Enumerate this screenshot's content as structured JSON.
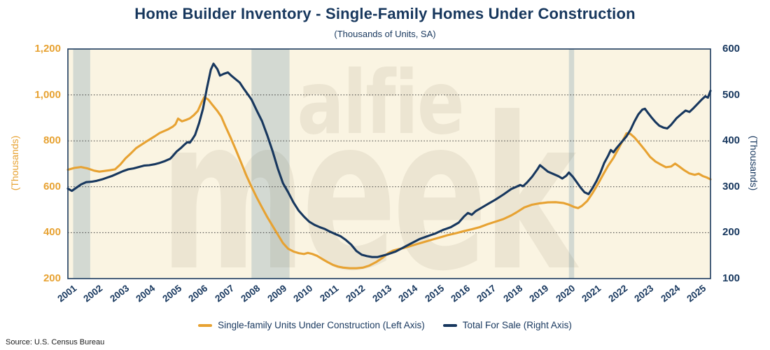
{
  "title": "Home Builder Inventory - Single-Family Homes Under Construction",
  "subtitle": "(Thousands of Units, SA)",
  "source": "Source: U.S. Census Bureau",
  "watermark_lines": [
    "alfie",
    "meek"
  ],
  "chart_data": {
    "type": "line",
    "x_range": [
      2001,
      2025.5
    ],
    "x_tick_years": [
      2001,
      2002,
      2003,
      2004,
      2005,
      2006,
      2007,
      2008,
      2009,
      2010,
      2011,
      2012,
      2013,
      2014,
      2015,
      2016,
      2017,
      2018,
      2019,
      2020,
      2021,
      2022,
      2023,
      2024,
      2025
    ],
    "left_axis": {
      "title": "(Thousands)",
      "min": 200,
      "max": 1200,
      "ticks": [
        200,
        400,
        600,
        800,
        1000,
        1200
      ],
      "color": "#E7A232"
    },
    "right_axis": {
      "title": "(Thousands)",
      "min": 100,
      "max": 600,
      "ticks": [
        100,
        200,
        300,
        400,
        500,
        600
      ],
      "color": "#17375E"
    },
    "gridline_left_values": [
      400,
      600,
      800,
      1000
    ],
    "grid": "dotted-horizontal",
    "plot_background": "#FAF4E2",
    "band_color": "#D3D9D2",
    "gridline_color": "#3b3b3b",
    "watermark_color": "rgba(80,70,25,0.08)",
    "recession_bands_years": [
      [
        2001.2,
        2001.85
      ],
      [
        2008.0,
        2009.45
      ],
      [
        2020.1,
        2020.3
      ]
    ],
    "legend_position": "bottom-center",
    "series": [
      {
        "name": "Single-family Units Under Construction (Left Axis)",
        "axis": "left",
        "color": "#E7A232",
        "points": [
          [
            2001.0,
            674
          ],
          [
            2001.25,
            682
          ],
          [
            2001.5,
            686
          ],
          [
            2001.75,
            680
          ],
          [
            2002.0,
            670
          ],
          [
            2002.2,
            666
          ],
          [
            2002.4,
            669
          ],
          [
            2002.6,
            672
          ],
          [
            2002.8,
            676
          ],
          [
            2003.0,
            697
          ],
          [
            2003.2,
            724
          ],
          [
            2003.4,
            745
          ],
          [
            2003.6,
            768
          ],
          [
            2003.8,
            783
          ],
          [
            2004.0,
            798
          ],
          [
            2004.3,
            819
          ],
          [
            2004.5,
            834
          ],
          [
            2004.8,
            849
          ],
          [
            2005.0,
            862
          ],
          [
            2005.1,
            872
          ],
          [
            2005.2,
            897
          ],
          [
            2005.35,
            885
          ],
          [
            2005.5,
            891
          ],
          [
            2005.65,
            898
          ],
          [
            2005.8,
            912
          ],
          [
            2005.95,
            930
          ],
          [
            2006.1,
            968
          ],
          [
            2006.2,
            990
          ],
          [
            2006.35,
            980
          ],
          [
            2006.5,
            958
          ],
          [
            2006.7,
            930
          ],
          [
            2006.85,
            905
          ],
          [
            2007.0,
            865
          ],
          [
            2007.2,
            815
          ],
          [
            2007.4,
            762
          ],
          [
            2007.6,
            706
          ],
          [
            2007.8,
            650
          ],
          [
            2008.0,
            600
          ],
          [
            2008.2,
            553
          ],
          [
            2008.4,
            510
          ],
          [
            2008.6,
            468
          ],
          [
            2008.8,
            430
          ],
          [
            2009.0,
            392
          ],
          [
            2009.2,
            355
          ],
          [
            2009.4,
            330
          ],
          [
            2009.6,
            318
          ],
          [
            2009.8,
            311
          ],
          [
            2010.0,
            307
          ],
          [
            2010.15,
            312
          ],
          [
            2010.3,
            308
          ],
          [
            2010.5,
            299
          ],
          [
            2010.7,
            285
          ],
          [
            2010.9,
            272
          ],
          [
            2011.1,
            260
          ],
          [
            2011.3,
            252
          ],
          [
            2011.5,
            248
          ],
          [
            2011.75,
            245
          ],
          [
            2012.0,
            245
          ],
          [
            2012.25,
            248
          ],
          [
            2012.5,
            257
          ],
          [
            2012.75,
            272
          ],
          [
            2013.0,
            291
          ],
          [
            2013.2,
            310
          ],
          [
            2013.4,
            322
          ],
          [
            2013.6,
            328
          ],
          [
            2013.8,
            333
          ],
          [
            2014.0,
            340
          ],
          [
            2014.3,
            350
          ],
          [
            2014.6,
            360
          ],
          [
            2014.9,
            370
          ],
          [
            2015.2,
            380
          ],
          [
            2015.5,
            390
          ],
          [
            2015.8,
            398
          ],
          [
            2016.1,
            407
          ],
          [
            2016.4,
            415
          ],
          [
            2016.7,
            424
          ],
          [
            2017.0,
            437
          ],
          [
            2017.3,
            448
          ],
          [
            2017.6,
            459
          ],
          [
            2017.9,
            475
          ],
          [
            2018.1,
            488
          ],
          [
            2018.4,
            510
          ],
          [
            2018.7,
            522
          ],
          [
            2019.0,
            528
          ],
          [
            2019.3,
            532
          ],
          [
            2019.6,
            533
          ],
          [
            2019.9,
            529
          ],
          [
            2020.1,
            522
          ],
          [
            2020.3,
            512
          ],
          [
            2020.45,
            507
          ],
          [
            2020.6,
            517
          ],
          [
            2020.8,
            538
          ],
          [
            2021.0,
            572
          ],
          [
            2021.2,
            610
          ],
          [
            2021.4,
            652
          ],
          [
            2021.6,
            692
          ],
          [
            2021.8,
            726
          ],
          [
            2022.0,
            768
          ],
          [
            2022.15,
            800
          ],
          [
            2022.3,
            833
          ],
          [
            2022.45,
            830
          ],
          [
            2022.6,
            815
          ],
          [
            2022.8,
            788
          ],
          [
            2023.0,
            760
          ],
          [
            2023.2,
            730
          ],
          [
            2023.4,
            710
          ],
          [
            2023.6,
            697
          ],
          [
            2023.8,
            685
          ],
          [
            2024.0,
            688
          ],
          [
            2024.15,
            701
          ],
          [
            2024.3,
            689
          ],
          [
            2024.5,
            672
          ],
          [
            2024.7,
            658
          ],
          [
            2024.9,
            652
          ],
          [
            2025.05,
            657
          ],
          [
            2025.2,
            647
          ],
          [
            2025.35,
            641
          ],
          [
            2025.5,
            632
          ]
        ]
      },
      {
        "name": "Total For Sale (Right Axis)",
        "axis": "right",
        "color": "#17375E",
        "points": [
          [
            2001.0,
            296
          ],
          [
            2001.15,
            291
          ],
          [
            2001.3,
            297
          ],
          [
            2001.5,
            305
          ],
          [
            2001.7,
            310
          ],
          [
            2001.9,
            311
          ],
          [
            2002.1,
            313
          ],
          [
            2002.3,
            316
          ],
          [
            2002.5,
            320
          ],
          [
            2002.7,
            324
          ],
          [
            2002.9,
            329
          ],
          [
            2003.1,
            334
          ],
          [
            2003.3,
            338
          ],
          [
            2003.5,
            340
          ],
          [
            2003.7,
            343
          ],
          [
            2003.9,
            346
          ],
          [
            2004.1,
            347
          ],
          [
            2004.3,
            349
          ],
          [
            2004.5,
            352
          ],
          [
            2004.7,
            356
          ],
          [
            2004.9,
            361
          ],
          [
            2005.0,
            367
          ],
          [
            2005.15,
            377
          ],
          [
            2005.3,
            384
          ],
          [
            2005.45,
            392
          ],
          [
            2005.55,
            397
          ],
          [
            2005.65,
            396
          ],
          [
            2005.75,
            404
          ],
          [
            2005.85,
            413
          ],
          [
            2006.0,
            438
          ],
          [
            2006.15,
            470
          ],
          [
            2006.3,
            515
          ],
          [
            2006.45,
            555
          ],
          [
            2006.55,
            568
          ],
          [
            2006.7,
            556
          ],
          [
            2006.8,
            542
          ],
          [
            2006.95,
            546
          ],
          [
            2007.1,
            549
          ],
          [
            2007.25,
            541
          ],
          [
            2007.4,
            534
          ],
          [
            2007.55,
            527
          ],
          [
            2007.7,
            514
          ],
          [
            2007.85,
            502
          ],
          [
            2008.0,
            490
          ],
          [
            2008.2,
            466
          ],
          [
            2008.4,
            443
          ],
          [
            2008.6,
            412
          ],
          [
            2008.8,
            378
          ],
          [
            2009.0,
            340
          ],
          [
            2009.2,
            308
          ],
          [
            2009.4,
            288
          ],
          [
            2009.6,
            266
          ],
          [
            2009.8,
            248
          ],
          [
            2010.0,
            235
          ],
          [
            2010.2,
            224
          ],
          [
            2010.4,
            217
          ],
          [
            2010.6,
            212
          ],
          [
            2010.8,
            208
          ],
          [
            2011.0,
            202
          ],
          [
            2011.2,
            197
          ],
          [
            2011.4,
            192
          ],
          [
            2011.6,
            184
          ],
          [
            2011.8,
            174
          ],
          [
            2012.0,
            160
          ],
          [
            2012.2,
            152
          ],
          [
            2012.4,
            149
          ],
          [
            2012.6,
            147
          ],
          [
            2012.8,
            147
          ],
          [
            2013.0,
            150
          ],
          [
            2013.2,
            153
          ],
          [
            2013.5,
            159
          ],
          [
            2013.8,
            168
          ],
          [
            2014.1,
            177
          ],
          [
            2014.4,
            186
          ],
          [
            2014.7,
            192
          ],
          [
            2015.0,
            198
          ],
          [
            2015.3,
            206
          ],
          [
            2015.6,
            212
          ],
          [
            2015.9,
            222
          ],
          [
            2016.1,
            235
          ],
          [
            2016.25,
            243
          ],
          [
            2016.4,
            239
          ],
          [
            2016.55,
            247
          ],
          [
            2016.7,
            252
          ],
          [
            2017.0,
            262
          ],
          [
            2017.3,
            272
          ],
          [
            2017.6,
            283
          ],
          [
            2017.9,
            295
          ],
          [
            2018.1,
            300
          ],
          [
            2018.25,
            304
          ],
          [
            2018.35,
            301
          ],
          [
            2018.5,
            309
          ],
          [
            2018.7,
            322
          ],
          [
            2018.9,
            338
          ],
          [
            2019.0,
            347
          ],
          [
            2019.15,
            340
          ],
          [
            2019.3,
            333
          ],
          [
            2019.5,
            328
          ],
          [
            2019.7,
            323
          ],
          [
            2019.85,
            318
          ],
          [
            2020.0,
            324
          ],
          [
            2020.1,
            331
          ],
          [
            2020.25,
            322
          ],
          [
            2020.4,
            310
          ],
          [
            2020.55,
            298
          ],
          [
            2020.7,
            288
          ],
          [
            2020.85,
            284
          ],
          [
            2021.0,
            297
          ],
          [
            2021.15,
            312
          ],
          [
            2021.3,
            330
          ],
          [
            2021.45,
            352
          ],
          [
            2021.6,
            368
          ],
          [
            2021.7,
            380
          ],
          [
            2021.8,
            375
          ],
          [
            2021.9,
            383
          ],
          [
            2022.0,
            390
          ],
          [
            2022.15,
            400
          ],
          [
            2022.3,
            410
          ],
          [
            2022.45,
            424
          ],
          [
            2022.6,
            442
          ],
          [
            2022.75,
            458
          ],
          [
            2022.9,
            468
          ],
          [
            2023.0,
            470
          ],
          [
            2023.1,
            462
          ],
          [
            2023.25,
            451
          ],
          [
            2023.4,
            441
          ],
          [
            2023.55,
            433
          ],
          [
            2023.7,
            429
          ],
          [
            2023.85,
            427
          ],
          [
            2024.0,
            435
          ],
          [
            2024.2,
            449
          ],
          [
            2024.4,
            459
          ],
          [
            2024.55,
            466
          ],
          [
            2024.7,
            463
          ],
          [
            2024.85,
            471
          ],
          [
            2025.0,
            480
          ],
          [
            2025.15,
            489
          ],
          [
            2025.3,
            497
          ],
          [
            2025.4,
            494
          ],
          [
            2025.5,
            509
          ]
        ]
      }
    ]
  }
}
